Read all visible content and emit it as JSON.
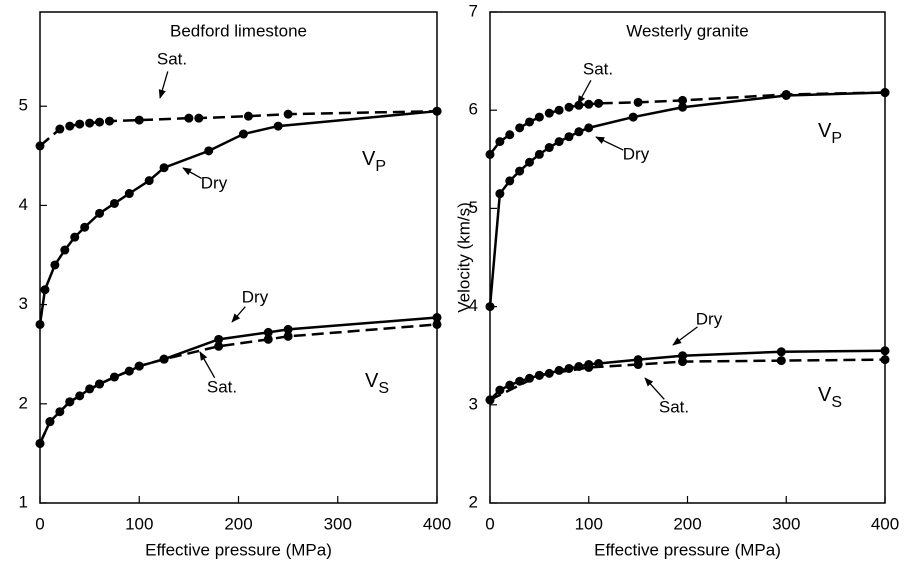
{
  "chart_data": [
    {
      "type": "line",
      "title": "Bedford limestone",
      "xlabel": "Effective pressure (MPa)",
      "xlim": [
        0,
        400
      ],
      "xticks": [
        0,
        100,
        200,
        300,
        400
      ],
      "ylim": [
        1,
        5.95
      ],
      "yticks": [
        1,
        2,
        3,
        4,
        5
      ],
      "series": [
        {
          "name": "Sat.",
          "color": "#000",
          "dashed": true,
          "x": [
            0,
            20,
            30,
            40,
            50,
            60,
            70,
            100,
            150,
            160,
            210,
            250,
            400
          ],
          "values": [
            4.6,
            4.77,
            4.8,
            4.82,
            4.83,
            4.84,
            4.85,
            4.86,
            4.88,
            4.88,
            4.9,
            4.92,
            4.95
          ]
        },
        {
          "name": "Dry",
          "color": "#000",
          "dashed": false,
          "x": [
            0,
            5,
            15,
            25,
            35,
            45,
            60,
            75,
            90,
            110,
            125,
            170,
            205,
            240,
            400
          ],
          "values": [
            2.8,
            3.15,
            3.4,
            3.55,
            3.68,
            3.78,
            3.92,
            4.02,
            4.12,
            4.25,
            4.38,
            4.55,
            4.72,
            4.8,
            4.95
          ]
        },
        {
          "name": "Dry",
          "color": "#000",
          "dashed": false,
          "x": [
            0,
            10,
            20,
            30,
            40,
            50,
            60,
            75,
            90,
            100,
            125,
            180,
            230,
            250,
            400
          ],
          "values": [
            1.6,
            1.82,
            1.92,
            2.02,
            2.08,
            2.15,
            2.2,
            2.27,
            2.33,
            2.38,
            2.45,
            2.65,
            2.72,
            2.75,
            2.87
          ]
        },
        {
          "name": "Sat.",
          "color": "#000",
          "dashed": true,
          "x": [
            0,
            10,
            30,
            60,
            100,
            125,
            180,
            230,
            250,
            400
          ],
          "values": [
            1.6,
            1.82,
            2.02,
            2.2,
            2.38,
            2.45,
            2.58,
            2.65,
            2.68,
            2.8
          ]
        }
      ],
      "wave_labels": [
        {
          "text": "V",
          "sub": "P"
        },
        {
          "text": "V",
          "sub": "S"
        }
      ]
    },
    {
      "type": "line",
      "title": "Westerly granite",
      "xlabel": "Effective pressure (MPa)",
      "ylabel": "Velocity (km/s)",
      "xlim": [
        0,
        400
      ],
      "xticks": [
        0,
        100,
        200,
        300,
        400
      ],
      "ylim": [
        2,
        7
      ],
      "yticks": [
        2,
        3,
        4,
        5,
        6,
        7
      ],
      "series": [
        {
          "name": "Sat.",
          "color": "#000",
          "dashed": true,
          "x": [
            0,
            10,
            20,
            30,
            40,
            50,
            60,
            70,
            80,
            90,
            100,
            110,
            150,
            195,
            300,
            400
          ],
          "values": [
            5.55,
            5.68,
            5.75,
            5.82,
            5.88,
            5.93,
            5.97,
            6.0,
            6.03,
            6.05,
            6.06,
            6.07,
            6.08,
            6.1,
            6.16,
            6.18
          ]
        },
        {
          "name": "Dry",
          "color": "#000",
          "dashed": false,
          "x": [
            0,
            10,
            20,
            30,
            40,
            50,
            60,
            70,
            80,
            90,
            100,
            145,
            195,
            300,
            400
          ],
          "values": [
            4.0,
            5.15,
            5.28,
            5.38,
            5.47,
            5.55,
            5.62,
            5.68,
            5.73,
            5.78,
            5.82,
            5.93,
            6.03,
            6.15,
            6.18
          ]
        },
        {
          "name": "Dry",
          "color": "#000",
          "dashed": false,
          "x": [
            0,
            10,
            20,
            30,
            40,
            50,
            60,
            70,
            80,
            90,
            100,
            110,
            150,
            195,
            295,
            400
          ],
          "values": [
            3.05,
            3.15,
            3.2,
            3.24,
            3.27,
            3.3,
            3.32,
            3.35,
            3.37,
            3.39,
            3.41,
            3.42,
            3.46,
            3.5,
            3.54,
            3.55
          ]
        },
        {
          "name": "Sat.",
          "color": "#000",
          "dashed": true,
          "x": [
            0,
            50,
            100,
            150,
            195,
            295,
            400
          ],
          "values": [
            3.05,
            3.3,
            3.38,
            3.41,
            3.44,
            3.45,
            3.46
          ]
        }
      ],
      "wave_labels": [
        {
          "text": "V",
          "sub": "P"
        },
        {
          "text": "V",
          "sub": "S"
        }
      ]
    }
  ]
}
